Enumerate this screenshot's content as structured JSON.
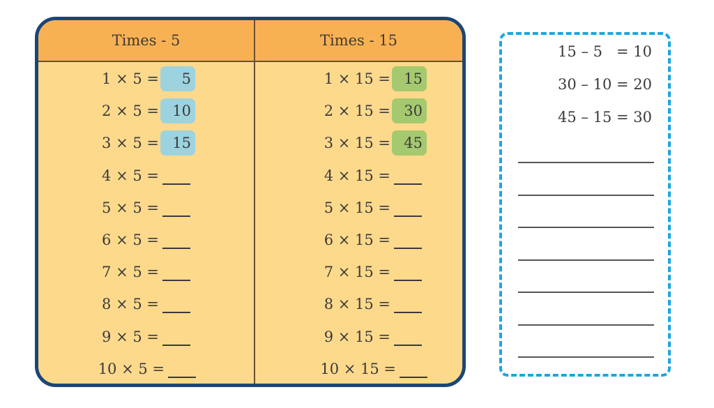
{
  "table": {
    "columns": [
      {
        "header": "Times - 5",
        "rows": [
          {
            "equation": "1 × 5 =",
            "answer": "5"
          },
          {
            "equation": "2 × 5 =",
            "answer": "10"
          },
          {
            "equation": "3 × 5 =",
            "answer": "15"
          },
          {
            "equation": "4 × 5 =",
            "answer": ""
          },
          {
            "equation": "5 × 5 =",
            "answer": ""
          },
          {
            "equation": "6 × 5 =",
            "answer": ""
          },
          {
            "equation": "7 × 5 =",
            "answer": ""
          },
          {
            "equation": "8 × 5 =",
            "answer": ""
          },
          {
            "equation": "9 × 5 =",
            "answer": ""
          },
          {
            "equation": "10 × 5 =",
            "answer": ""
          }
        ],
        "highlight_color": "#9dd3df"
      },
      {
        "header": "Times - 15",
        "rows": [
          {
            "equation": "1 × 15 =",
            "answer": "15"
          },
          {
            "equation": "2 × 15 =",
            "answer": "30"
          },
          {
            "equation": "3 × 15 =",
            "answer": "45"
          },
          {
            "equation": "4 × 15 =",
            "answer": ""
          },
          {
            "equation": "5 × 15 =",
            "answer": ""
          },
          {
            "equation": "6 × 15 =",
            "answer": ""
          },
          {
            "equation": "7 × 15 =",
            "answer": ""
          },
          {
            "equation": "8 × 15 =",
            "answer": ""
          },
          {
            "equation": "9 × 15 =",
            "answer": ""
          },
          {
            "equation": "10 × 15 =",
            "answer": ""
          }
        ],
        "highlight_color": "#a5c96e"
      }
    ],
    "header_color": "#f8b152",
    "body_color": "#fdd98c",
    "border_color": "#1b4578"
  },
  "differences": {
    "border_color": "#1ba6e2",
    "items": [
      "15 – 5   = 10",
      "30 – 10 = 20",
      "45 – 15 = 30"
    ],
    "blank_lines": 7
  }
}
